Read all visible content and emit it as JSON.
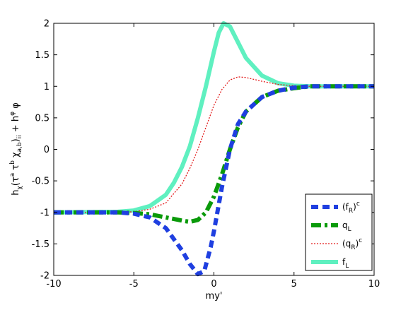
{
  "chart_data": {
    "type": "line",
    "xlabel": "my'",
    "ylabel": "h_χ(τ^a τ^b χ_a,b)_ii + h_φ φ",
    "ylabel_parts": {
      "a": "h",
      "a_sub": "χ",
      "b": "(τ",
      "b_sup": "a",
      "c": " τ",
      "c_sup": "b",
      "d": " χ",
      "d_sub": "a,b",
      "e": ")",
      "e_sub": "ii",
      "f": " + h",
      "f_sub": "φ",
      "g": " φ"
    },
    "xlim": [
      -10,
      10
    ],
    "ylim": [
      -2,
      2
    ],
    "xticks": [
      -10,
      -5,
      0,
      5,
      10
    ],
    "yticks": [
      -2,
      -1.5,
      -1,
      -0.5,
      0,
      0.5,
      1,
      1.5,
      2
    ],
    "ytick_labels": [
      "-2",
      "-1.5",
      "-1",
      "-0.5",
      "0",
      "0.5",
      "1",
      "1.5",
      "2"
    ],
    "xtick_labels": [
      "-10",
      "-5",
      "0",
      "5",
      "10"
    ],
    "grid": false,
    "legend_position": "bottom-right",
    "series": [
      {
        "name": "(f_R)^c",
        "label_main": "(f",
        "label_sub": "R",
        "label_close": ")",
        "label_sup": "c",
        "color": "#1f3fe0",
        "style": "dashed",
        "x": [
          -10,
          -6,
          -5,
          -4,
          -3,
          -2,
          -1.5,
          -1,
          -0.6,
          -0.2,
          0,
          0.5,
          1,
          1.5,
          2,
          3,
          4,
          5,
          6,
          8,
          10
        ],
        "y": [
          -1.0,
          -1.0,
          -1.02,
          -1.08,
          -1.25,
          -1.6,
          -1.82,
          -1.98,
          -1.93,
          -1.55,
          -1.3,
          -0.6,
          0.0,
          0.4,
          0.6,
          0.83,
          0.93,
          0.98,
          1.0,
          1.0,
          1.0
        ]
      },
      {
        "name": "q_L",
        "label_main": "q",
        "label_sub": "L",
        "label_close": "",
        "label_sup": "",
        "color": "#0a9a0a",
        "style": "dashdot",
        "x": [
          -10,
          -6,
          -5,
          -4,
          -3,
          -2,
          -1.5,
          -1,
          -0.5,
          0,
          0.5,
          1,
          1.5,
          2,
          3,
          4,
          5,
          6,
          8,
          10
        ],
        "y": [
          -1.0,
          -1.0,
          -1.01,
          -1.03,
          -1.08,
          -1.13,
          -1.15,
          -1.12,
          -1.0,
          -0.75,
          -0.4,
          0.0,
          0.35,
          0.6,
          0.83,
          0.93,
          0.97,
          1.0,
          1.0,
          1.0
        ]
      },
      {
        "name": "(q_R)^c",
        "label_main": "(q",
        "label_sub": "R",
        "label_close": ")",
        "label_sup": "c",
        "color": "#e21b1b",
        "style": "dotted",
        "x": [
          -10,
          -6,
          -5,
          -4,
          -3,
          -2,
          -1.5,
          -1,
          -0.5,
          0,
          0.5,
          1,
          1.5,
          2,
          3,
          4,
          5,
          6,
          8,
          10
        ],
        "y": [
          -1.0,
          -1.0,
          -0.99,
          -0.95,
          -0.85,
          -0.55,
          -0.3,
          0.0,
          0.35,
          0.7,
          0.95,
          1.1,
          1.15,
          1.14,
          1.08,
          1.03,
          1.01,
          1.0,
          1.0,
          1.0
        ]
      },
      {
        "name": "f_L",
        "label_main": "f",
        "label_sub": "L",
        "label_close": "",
        "label_sup": "",
        "color": "#5ff0c0",
        "style": "solid",
        "x": [
          -10,
          -6,
          -5,
          -4,
          -3,
          -2.5,
          -2,
          -1.5,
          -1,
          -0.5,
          0,
          0.3,
          0.6,
          1,
          1.5,
          2,
          3,
          4,
          5,
          6,
          8,
          10
        ],
        "y": [
          -1.0,
          -0.99,
          -0.97,
          -0.9,
          -0.72,
          -0.53,
          -0.28,
          0.05,
          0.5,
          1.0,
          1.55,
          1.85,
          2.0,
          1.95,
          1.7,
          1.45,
          1.17,
          1.05,
          1.01,
          1.0,
          1.0,
          1.0
        ]
      }
    ]
  }
}
